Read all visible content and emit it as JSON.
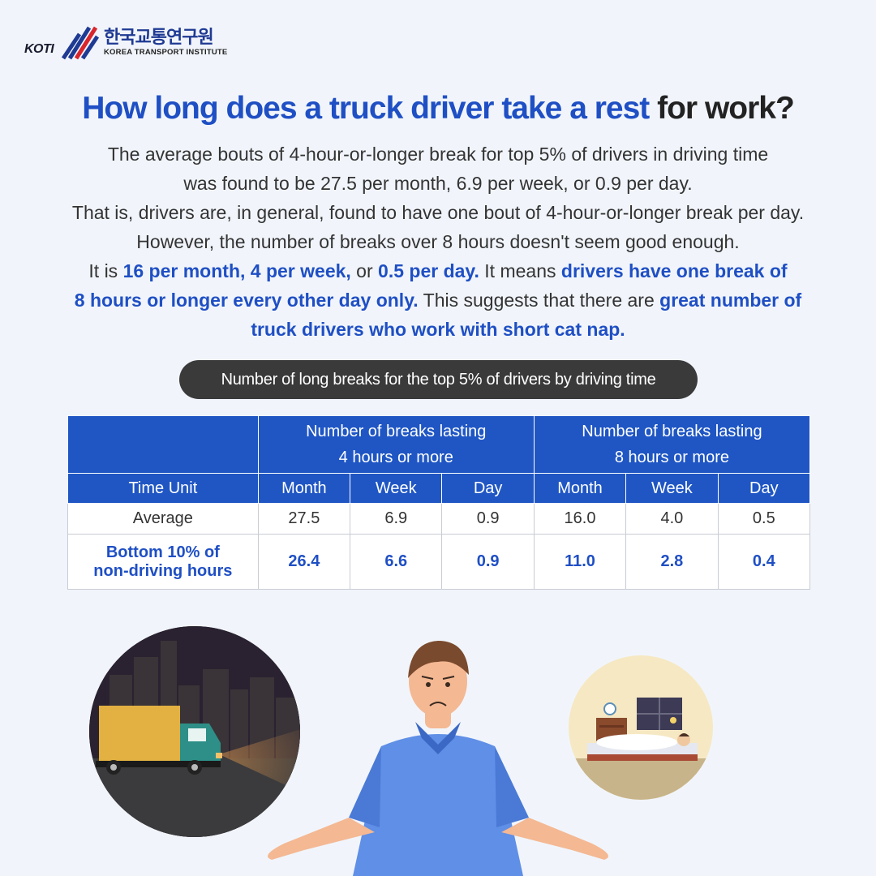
{
  "logo": {
    "mark_text": "KOTI",
    "korean": "한국교통연구원",
    "english": "KOREA TRANSPORT INSTITUTE"
  },
  "headline": {
    "blue": "How long does a truck driver take a rest",
    "dark": " for work?"
  },
  "paragraph": {
    "l1": "The average bouts of 4-hour-or-longer break for top 5% of drivers in driving time",
    "l2": "was found to be 27.5 per month, 6.9 per week, or 0.9 per day.",
    "l3": "That is, drivers are, in general, found to have one bout of 4-hour-or-longer break per day.",
    "l4": "However, the number of breaks over 8 hours doesn't seem good enough.",
    "l5a": "It is ",
    "l5b": "16 per month, 4 per week,",
    "l5c": " or ",
    "l5d": "0.5 per day.",
    "l5e": " It means ",
    "l5f": "drivers have one break of",
    "l6a": "8 hours or longer every other day only.",
    "l6b": " This suggests that there are ",
    "l6c": "great number of",
    "l7": "truck drivers who work with short cat nap."
  },
  "table_title": "Number of long breaks for the top 5% of drivers by driving time",
  "table": {
    "group1_l1": "Number of breaks lasting",
    "group1_l2": "4 hours or more",
    "group2_l1": "Number of breaks lasting",
    "group2_l2": "8 hours or more",
    "col_unit": "Time Unit",
    "cols": [
      "Month",
      "Week",
      "Day",
      "Month",
      "Week",
      "Day"
    ],
    "avg_label": "Average",
    "avg": [
      "27.5",
      "6.9",
      "0.9",
      "16.0",
      "4.0",
      "0.5"
    ],
    "bot_label_l1": "Bottom 10% of",
    "bot_label_l2": "non-driving hours",
    "bot": [
      "26.4",
      "6.6",
      "0.9",
      "11.0",
      "2.8",
      "0.4"
    ]
  },
  "colors": {
    "accent": "#1f4fc4",
    "header_bg": "#1f56c4",
    "pill_bg": "#3a3a3a",
    "page_bg": "#f1f5fb"
  },
  "illustrations": [
    "night-truck-icon",
    "worried-man-icon",
    "sleeping-person-icon"
  ]
}
